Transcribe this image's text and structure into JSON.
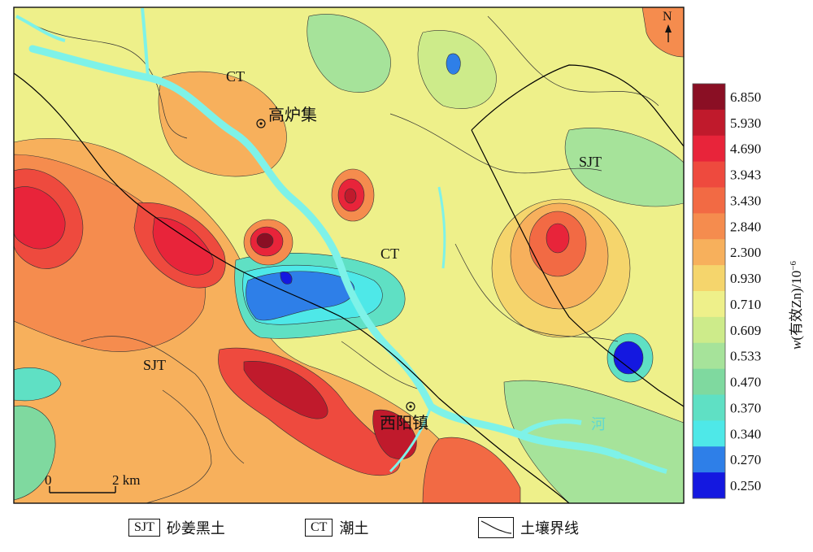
{
  "legend": {
    "title": "w(有效Zn)/10⁻⁶",
    "title_italic_var": "w",
    "title_rest": "(有效Zn)/10",
    "title_exp": "−6",
    "entries": [
      {
        "label": "6.850",
        "color": "#8a0f24"
      },
      {
        "label": "5.930",
        "color": "#c01a2c"
      },
      {
        "label": "4.690",
        "color": "#e8243a"
      },
      {
        "label": "3.943",
        "color": "#ee4a3e"
      },
      {
        "label": "3.430",
        "color": "#f26a44"
      },
      {
        "label": "2.840",
        "color": "#f58c4e"
      },
      {
        "label": "2.300",
        "color": "#f7b05c"
      },
      {
        "label": "0.930",
        "color": "#f5d56c"
      },
      {
        "label": "0.710",
        "color": "#eef08a"
      },
      {
        "label": "0.609",
        "color": "#cdeb8a"
      },
      {
        "label": "0.533",
        "color": "#a6e39a"
      },
      {
        "label": "0.470",
        "color": "#7fd99f"
      },
      {
        "label": "0.370",
        "color": "#5fe0c4"
      },
      {
        "label": "0.340",
        "color": "#4ee8e8"
      },
      {
        "label": "0.270",
        "color": "#2e7fe8"
      },
      {
        "label": "0.250",
        "color": "#1418e0"
      }
    ]
  },
  "map_labels": {
    "north": "N",
    "ct_top": "CT",
    "town_gaoluji": "高炉集",
    "sjt_right": "SJT",
    "ct_center": "CT",
    "sjt_left": "SJT",
    "town_xiyang": "西阳镇",
    "river": "河"
  },
  "scale_bar": {
    "zero": "0",
    "distance": "2 km"
  },
  "bottom_legend": [
    {
      "code": "SJT",
      "text": "砂姜黑土"
    },
    {
      "code": "CT",
      "text": "潮土"
    },
    {
      "code": "",
      "text": "土壤界线"
    }
  ],
  "colors": {
    "river": "#7ef2e8",
    "boundary": "#000000",
    "contour": "#333333"
  }
}
